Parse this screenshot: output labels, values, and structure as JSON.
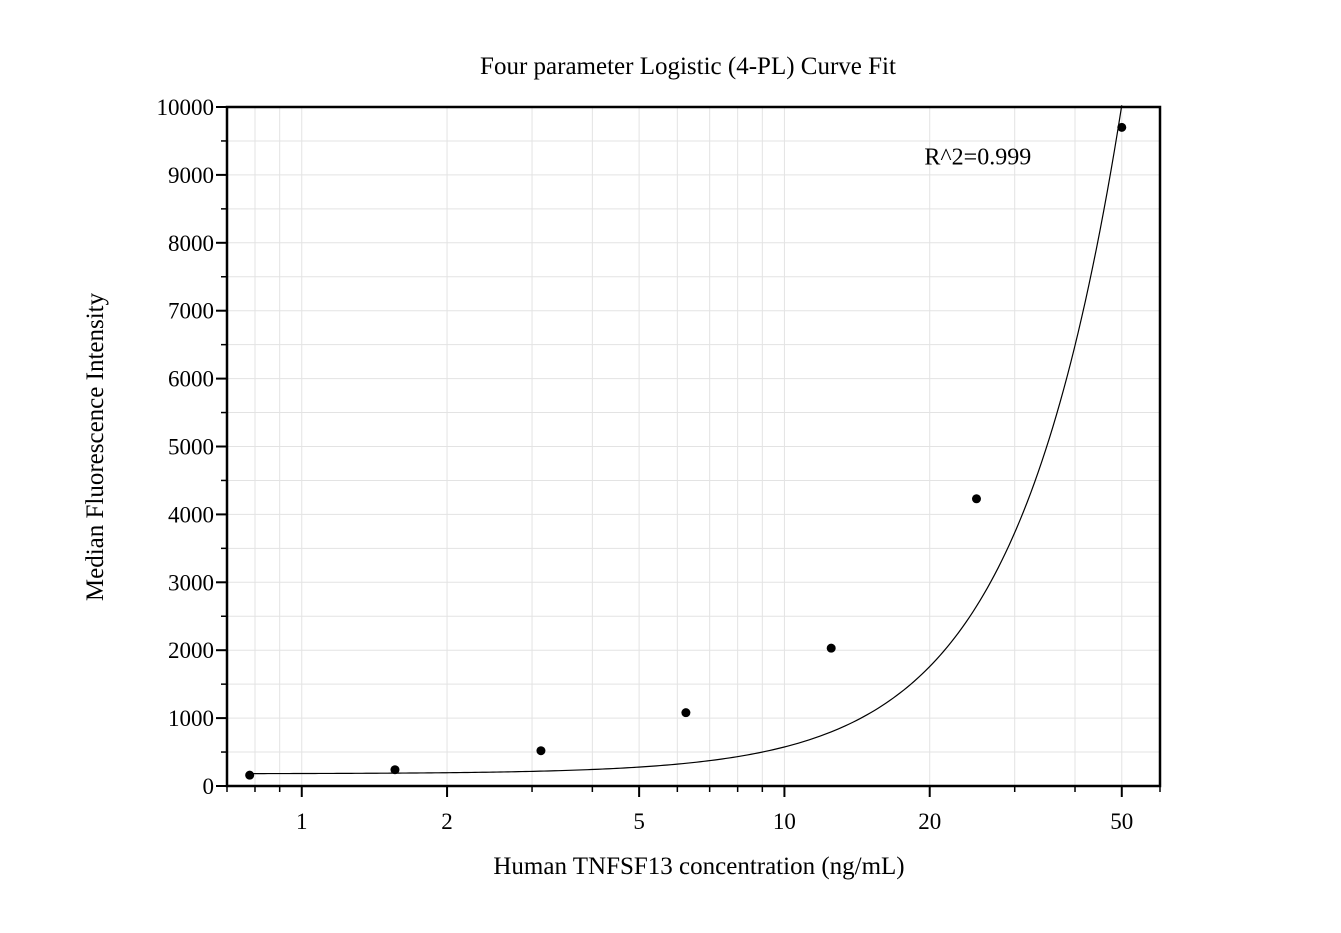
{
  "chart_data": {
    "type": "scatter",
    "title": "Four parameter Logistic (4-PL) Curve Fit",
    "xlabel": "Human TNFSF13 concentration (ng/mL)",
    "ylabel": "Median Fluorescence Intensity",
    "x_scale": "log",
    "xlim": [
      0.7,
      60
    ],
    "ylim": [
      0,
      10000
    ],
    "x_ticks": [
      1,
      2,
      5,
      10,
      20,
      50
    ],
    "x_tick_labels": [
      "1",
      "2",
      "5",
      "10",
      "20",
      "50"
    ],
    "y_ticks": [
      0,
      1000,
      2000,
      3000,
      4000,
      5000,
      6000,
      7000,
      8000,
      9000,
      10000
    ],
    "y_tick_labels": [
      "0",
      "1000",
      "2000",
      "3000",
      "4000",
      "5000",
      "6000",
      "7000",
      "8000",
      "9000",
      "10000"
    ],
    "grid": true,
    "series": [
      {
        "points": [
          {
            "x": 0.78,
            "y": 160
          },
          {
            "x": 1.56,
            "y": 240
          },
          {
            "x": 3.13,
            "y": 520
          },
          {
            "x": 6.25,
            "y": 1080
          },
          {
            "x": 12.5,
            "y": 2030
          },
          {
            "x": 25,
            "y": 4230
          },
          {
            "x": 50,
            "y": 9700
          }
        ],
        "color": "#000000"
      }
    ],
    "fit_curve": {
      "model": "4PL",
      "params": {
        "A": 180,
        "B": 2.0,
        "C": 900,
        "D": 3200000
      },
      "color": "#000000"
    },
    "annotations": [
      {
        "text": "R^2=0.999",
        "x": 19.5,
        "y": 9150
      }
    ]
  }
}
